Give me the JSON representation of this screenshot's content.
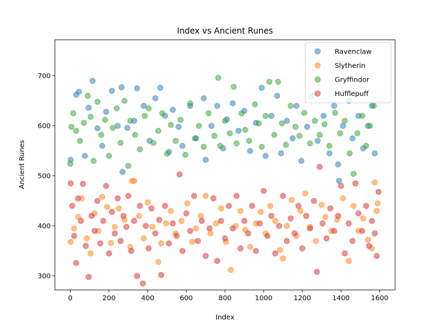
{
  "chart_data": {
    "type": "scatter",
    "title": "Index vs Ancient Runes",
    "xlabel": "Index",
    "ylabel": "Ancient Runes",
    "xlim": [
      -80,
      1680
    ],
    "ylim": [
      272,
      772
    ],
    "xticks": [
      0,
      200,
      400,
      600,
      800,
      1000,
      1200,
      1400,
      1600
    ],
    "yticks": [
      300,
      400,
      500,
      600,
      700
    ],
    "grid": false,
    "legend_position": "top-right",
    "point_alpha": 0.5,
    "series": [
      {
        "name": "Ravenclaw",
        "color": "#1f77b4",
        "points": [
          [
            2,
            532
          ],
          [
            30,
            662
          ],
          [
            45,
            668
          ],
          [
            75,
            540
          ],
          [
            95,
            636
          ],
          [
            115,
            690
          ],
          [
            140,
            595
          ],
          [
            165,
            560
          ],
          [
            185,
            628
          ],
          [
            215,
            670
          ],
          [
            245,
            600
          ],
          [
            265,
            677
          ],
          [
            270,
            508
          ],
          [
            295,
            596
          ],
          [
            330,
            610
          ],
          [
            345,
            675
          ],
          [
            380,
            640
          ],
          [
            410,
            570
          ],
          [
            440,
            655
          ],
          [
            465,
            676
          ],
          [
            490,
            620
          ],
          [
            510,
            548
          ],
          [
            530,
            632
          ],
          [
            560,
            598
          ],
          [
            580,
            560
          ],
          [
            620,
            640
          ],
          [
            650,
            575
          ],
          [
            690,
            655
          ],
          [
            700,
            532
          ],
          [
            730,
            600
          ],
          [
            760,
            640
          ],
          [
            790,
            555
          ],
          [
            810,
            613
          ],
          [
            840,
            645
          ],
          [
            870,
            590
          ],
          [
            900,
            630
          ],
          [
            930,
            550
          ],
          [
            960,
            606
          ],
          [
            990,
            676
          ],
          [
            1010,
            540
          ],
          [
            1040,
            620
          ],
          [
            1070,
            660
          ],
          [
            1090,
            545
          ],
          [
            1120,
            610
          ],
          [
            1150,
            575
          ],
          [
            1170,
            640
          ],
          [
            1195,
            530
          ],
          [
            1225,
            598
          ],
          [
            1250,
            660
          ],
          [
            1280,
            570
          ],
          [
            1310,
            620
          ],
          [
            1340,
            545
          ],
          [
            1365,
            640
          ],
          [
            1385,
            523
          ],
          [
            1390,
            490
          ],
          [
            1410,
            600
          ],
          [
            1440,
            650
          ],
          [
            1460,
            575
          ],
          [
            1490,
            620
          ],
          [
            1515,
            555
          ],
          [
            1540,
            600
          ],
          [
            1560,
            640
          ],
          [
            1575,
            545
          ]
        ]
      },
      {
        "name": "Slytherin",
        "color": "#ff7f0e",
        "points": [
          [
            2,
            368
          ],
          [
            20,
            395
          ],
          [
            40,
            418
          ],
          [
            60,
            455
          ],
          [
            85,
            375
          ],
          [
            105,
            345
          ],
          [
            125,
            425
          ],
          [
            145,
            390
          ],
          [
            165,
            458
          ],
          [
            190,
            438
          ],
          [
            210,
            366
          ],
          [
            230,
            398
          ],
          [
            250,
            435
          ],
          [
            280,
            412
          ],
          [
            310,
            358
          ],
          [
            320,
            490
          ],
          [
            330,
            490
          ],
          [
            355,
            420
          ],
          [
            380,
            375
          ],
          [
            400,
            447
          ],
          [
            425,
            398
          ],
          [
            455,
            328
          ],
          [
            470,
            365
          ],
          [
            495,
            405
          ],
          [
            520,
            430
          ],
          [
            545,
            385
          ],
          [
            575,
            410
          ],
          [
            605,
            445
          ],
          [
            630,
            368
          ],
          [
            650,
            395
          ],
          [
            675,
            420
          ],
          [
            700,
            460
          ],
          [
            725,
            385
          ],
          [
            755,
            405
          ],
          [
            780,
            435
          ],
          [
            805,
            368
          ],
          [
            830,
            312
          ],
          [
            855,
            400
          ],
          [
            880,
            430
          ],
          [
            905,
            392
          ],
          [
            930,
            358
          ],
          [
            960,
            405
          ],
          [
            985,
            428
          ],
          [
            1010,
            385
          ],
          [
            1035,
            440
          ],
          [
            1060,
            410
          ],
          [
            1085,
            352
          ],
          [
            1100,
            335
          ],
          [
            1120,
            400
          ],
          [
            1145,
            452
          ],
          [
            1170,
            380
          ],
          [
            1190,
            430
          ],
          [
            1215,
            465
          ],
          [
            1240,
            398
          ],
          [
            1270,
            370
          ],
          [
            1300,
            442
          ],
          [
            1320,
            418
          ],
          [
            1350,
            390
          ],
          [
            1380,
            412
          ],
          [
            1410,
            455
          ],
          [
            1440,
            330
          ],
          [
            1465,
            440
          ],
          [
            1490,
            390
          ],
          [
            1515,
            415
          ],
          [
            1540,
            372
          ],
          [
            1560,
            355
          ],
          [
            1575,
            487
          ],
          [
            1585,
            430
          ],
          [
            1590,
            445
          ]
        ]
      },
      {
        "name": "Gryffindor",
        "color": "#2ca02c",
        "points": [
          [
            0,
            524
          ],
          [
            5,
            598
          ],
          [
            15,
            625
          ],
          [
            30,
            590
          ],
          [
            50,
            570
          ],
          [
            70,
            606
          ],
          [
            90,
            660
          ],
          [
            105,
            618
          ],
          [
            120,
            530
          ],
          [
            140,
            648
          ],
          [
            160,
            582
          ],
          [
            180,
            612
          ],
          [
            200,
            540
          ],
          [
            220,
            596
          ],
          [
            240,
            635
          ],
          [
            260,
            566
          ],
          [
            280,
            650
          ],
          [
            300,
            520
          ],
          [
            310,
            610
          ],
          [
            335,
            582
          ],
          [
            360,
            553
          ],
          [
            385,
            620
          ],
          [
            405,
            635
          ],
          [
            430,
            566
          ],
          [
            455,
            590
          ],
          [
            475,
            625
          ],
          [
            500,
            544
          ],
          [
            520,
            602
          ],
          [
            545,
            570
          ],
          [
            570,
            612
          ],
          [
            595,
            542
          ],
          [
            620,
            645
          ],
          [
            645,
            575
          ],
          [
            665,
            600
          ],
          [
            690,
            558
          ],
          [
            715,
            625
          ],
          [
            745,
            580
          ],
          [
            765,
            696
          ],
          [
            775,
            560
          ],
          [
            800,
            610
          ],
          [
            825,
            585
          ],
          [
            845,
            678
          ],
          [
            860,
            565
          ],
          [
            885,
            625
          ],
          [
            905,
            592
          ],
          [
            925,
            570
          ],
          [
            955,
            643
          ],
          [
            975,
            605
          ],
          [
            990,
            558
          ],
          [
            1010,
            620
          ],
          [
            1030,
            688
          ],
          [
            1055,
            582
          ],
          [
            1075,
            688
          ],
          [
            1095,
            605
          ],
          [
            1115,
            562
          ],
          [
            1140,
            640
          ],
          [
            1165,
            598
          ],
          [
            1185,
            580
          ],
          [
            1210,
            626
          ],
          [
            1240,
            565
          ],
          [
            1265,
            610
          ],
          [
            1290,
            582
          ],
          [
            1315,
            603
          ],
          [
            1340,
            560
          ],
          [
            1370,
            626
          ],
          [
            1395,
            585
          ],
          [
            1420,
            610
          ],
          [
            1445,
            545
          ],
          [
            1465,
            504
          ],
          [
            1485,
            585
          ],
          [
            1510,
            620
          ],
          [
            1530,
            560
          ],
          [
            1550,
            600
          ],
          [
            1570,
            640
          ]
        ]
      },
      {
        "name": "Hufflepuff",
        "color": "#d62728",
        "points": [
          [
            2,
            485
          ],
          [
            10,
            440
          ],
          [
            20,
            380
          ],
          [
            30,
            326
          ],
          [
            40,
            455
          ],
          [
            55,
            410
          ],
          [
            65,
            484
          ],
          [
            80,
            360
          ],
          [
            95,
            298
          ],
          [
            110,
            420
          ],
          [
            125,
            390
          ],
          [
            140,
            450
          ],
          [
            155,
            365
          ],
          [
            170,
            410
          ],
          [
            185,
            480
          ],
          [
            200,
            345
          ],
          [
            215,
            428
          ],
          [
            230,
            385
          ],
          [
            245,
            455
          ],
          [
            260,
            370
          ],
          [
            275,
            420
          ],
          [
            290,
            398
          ],
          [
            300,
            460
          ],
          [
            315,
            350
          ],
          [
            330,
            410
          ],
          [
            345,
            300
          ],
          [
            360,
            440
          ],
          [
            375,
            285
          ],
          [
            390,
            400
          ],
          [
            405,
            355
          ],
          [
            420,
            435
          ],
          [
            440,
            385
          ],
          [
            460,
            412
          ],
          [
            470,
            302
          ],
          [
            490,
            440
          ],
          [
            510,
            365
          ],
          [
            530,
            405
          ],
          [
            550,
            380
          ],
          [
            565,
            503
          ],
          [
            580,
            350
          ],
          [
            600,
            425
          ],
          [
            620,
            390
          ],
          [
            640,
            460
          ],
          [
            660,
            370
          ],
          [
            680,
            410
          ],
          [
            700,
            340
          ],
          [
            720,
            395
          ],
          [
            740,
            455
          ],
          [
            760,
            330
          ],
          [
            780,
            410
          ],
          [
            800,
            375
          ],
          [
            820,
            440
          ],
          [
            840,
            395
          ],
          [
            860,
            460
          ],
          [
            880,
            355
          ],
          [
            900,
            410
          ],
          [
            920,
            385
          ],
          [
            940,
            440
          ],
          [
            960,
            350
          ],
          [
            980,
            405
          ],
          [
            1000,
            470
          ],
          [
            1020,
            380
          ],
          [
            1040,
            420
          ],
          [
            1060,
            345
          ],
          [
            1080,
            400
          ],
          [
            1100,
            460
          ],
          [
            1120,
            370
          ],
          [
            1140,
            415
          ],
          [
            1160,
            385
          ],
          [
            1180,
            440
          ],
          [
            1200,
            355
          ],
          [
            1220,
            420
          ],
          [
            1240,
            395
          ],
          [
            1260,
            450
          ],
          [
            1275,
            308
          ],
          [
            1290,
            518
          ],
          [
            1305,
            405
          ],
          [
            1325,
            375
          ],
          [
            1345,
            435
          ],
          [
            1365,
            390
          ],
          [
            1385,
            420
          ],
          [
            1400,
            480
          ],
          [
            1420,
            345
          ],
          [
            1440,
            405
          ],
          [
            1460,
            370
          ],
          [
            1475,
            485
          ],
          [
            1490,
            425
          ],
          [
            1510,
            390
          ],
          [
            1530,
            440
          ],
          [
            1545,
            360
          ],
          [
            1560,
            410
          ],
          [
            1575,
            385
          ],
          [
            1585,
            340
          ],
          [
            1595,
            468
          ]
        ]
      }
    ]
  }
}
